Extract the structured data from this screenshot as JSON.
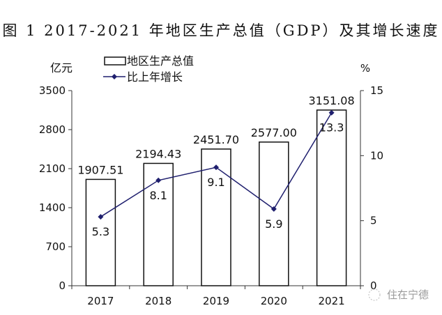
{
  "chart_data": {
    "type": "bar+line",
    "title": "图 1   2017-2021 年地区生产总值（GDP）及其增长速度",
    "categories": [
      "2017",
      "2018",
      "2019",
      "2020",
      "2021"
    ],
    "series": [
      {
        "name": "地区生产总值",
        "type": "bar",
        "axis": "left",
        "values": [
          1907.51,
          2194.43,
          2451.7,
          2577.0,
          3151.08
        ],
        "labels": [
          "1907.51",
          "2194.43",
          "2451.70",
          "2577.00",
          "3151.08"
        ]
      },
      {
        "name": "比上年增长",
        "type": "line",
        "axis": "right",
        "values": [
          5.3,
          8.1,
          9.1,
          5.9,
          13.3
        ],
        "labels": [
          "5.3",
          "8.1",
          "9.1",
          "5.9",
          "13.3"
        ],
        "color": "#1f1f6e"
      }
    ],
    "y_left": {
      "unit": "亿元",
      "range": [
        0,
        3500
      ],
      "ticks": [
        "0",
        "700",
        "1400",
        "2100",
        "2800",
        "3500"
      ]
    },
    "y_right": {
      "unit": "%",
      "range": [
        0,
        15
      ],
      "ticks": [
        "0",
        "5",
        "10",
        "15"
      ]
    },
    "grid": false,
    "legend_position": "top-left"
  },
  "watermark": "住在宁德"
}
